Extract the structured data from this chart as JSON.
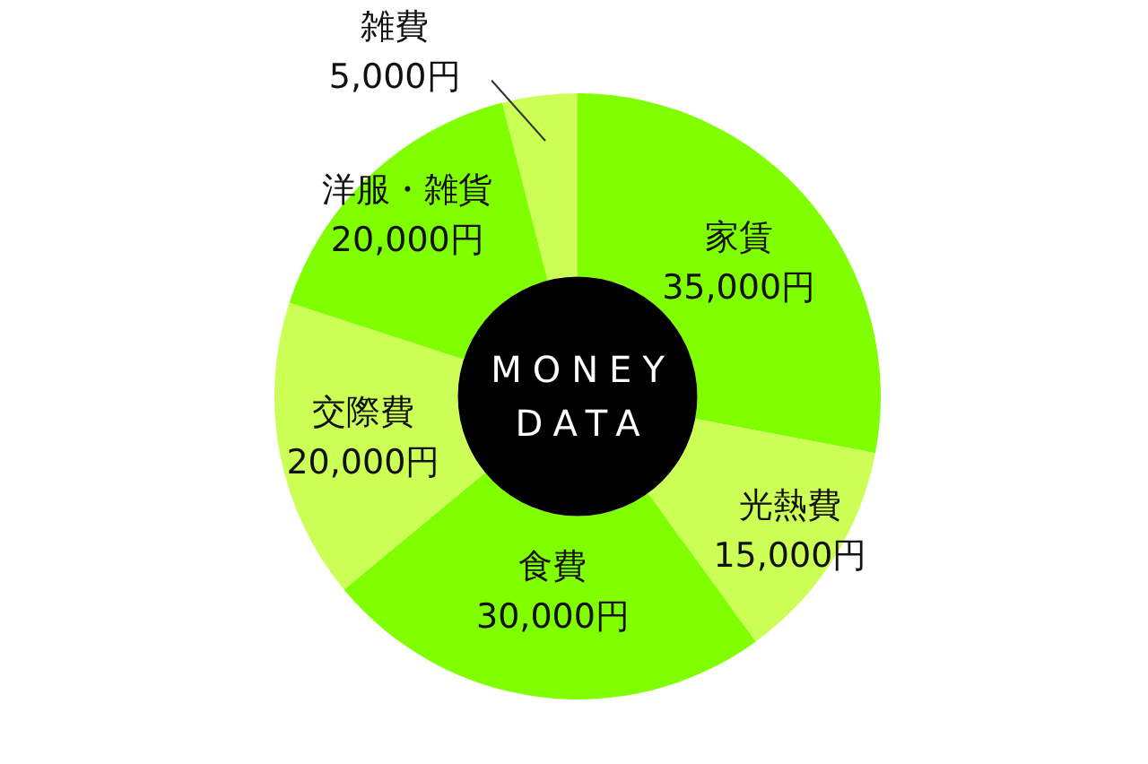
{
  "chart_data": {
    "type": "donut",
    "title": "MONEY DATA",
    "categories": [
      "家賃",
      "光熱費",
      "食費",
      "交際費",
      "洋服・雑貨",
      "雑費"
    ],
    "values": [
      35000,
      15000,
      30000,
      20000,
      20000,
      5000
    ],
    "colors": [
      "#80ff00",
      "#ccff55",
      "#80ff00",
      "#ccff55",
      "#80ff00",
      "#ccff55"
    ],
    "value_labels": [
      "35,000円",
      "15,000円",
      "30,000円",
      "20,000円",
      "20,000円",
      "5,000円"
    ]
  }
}
